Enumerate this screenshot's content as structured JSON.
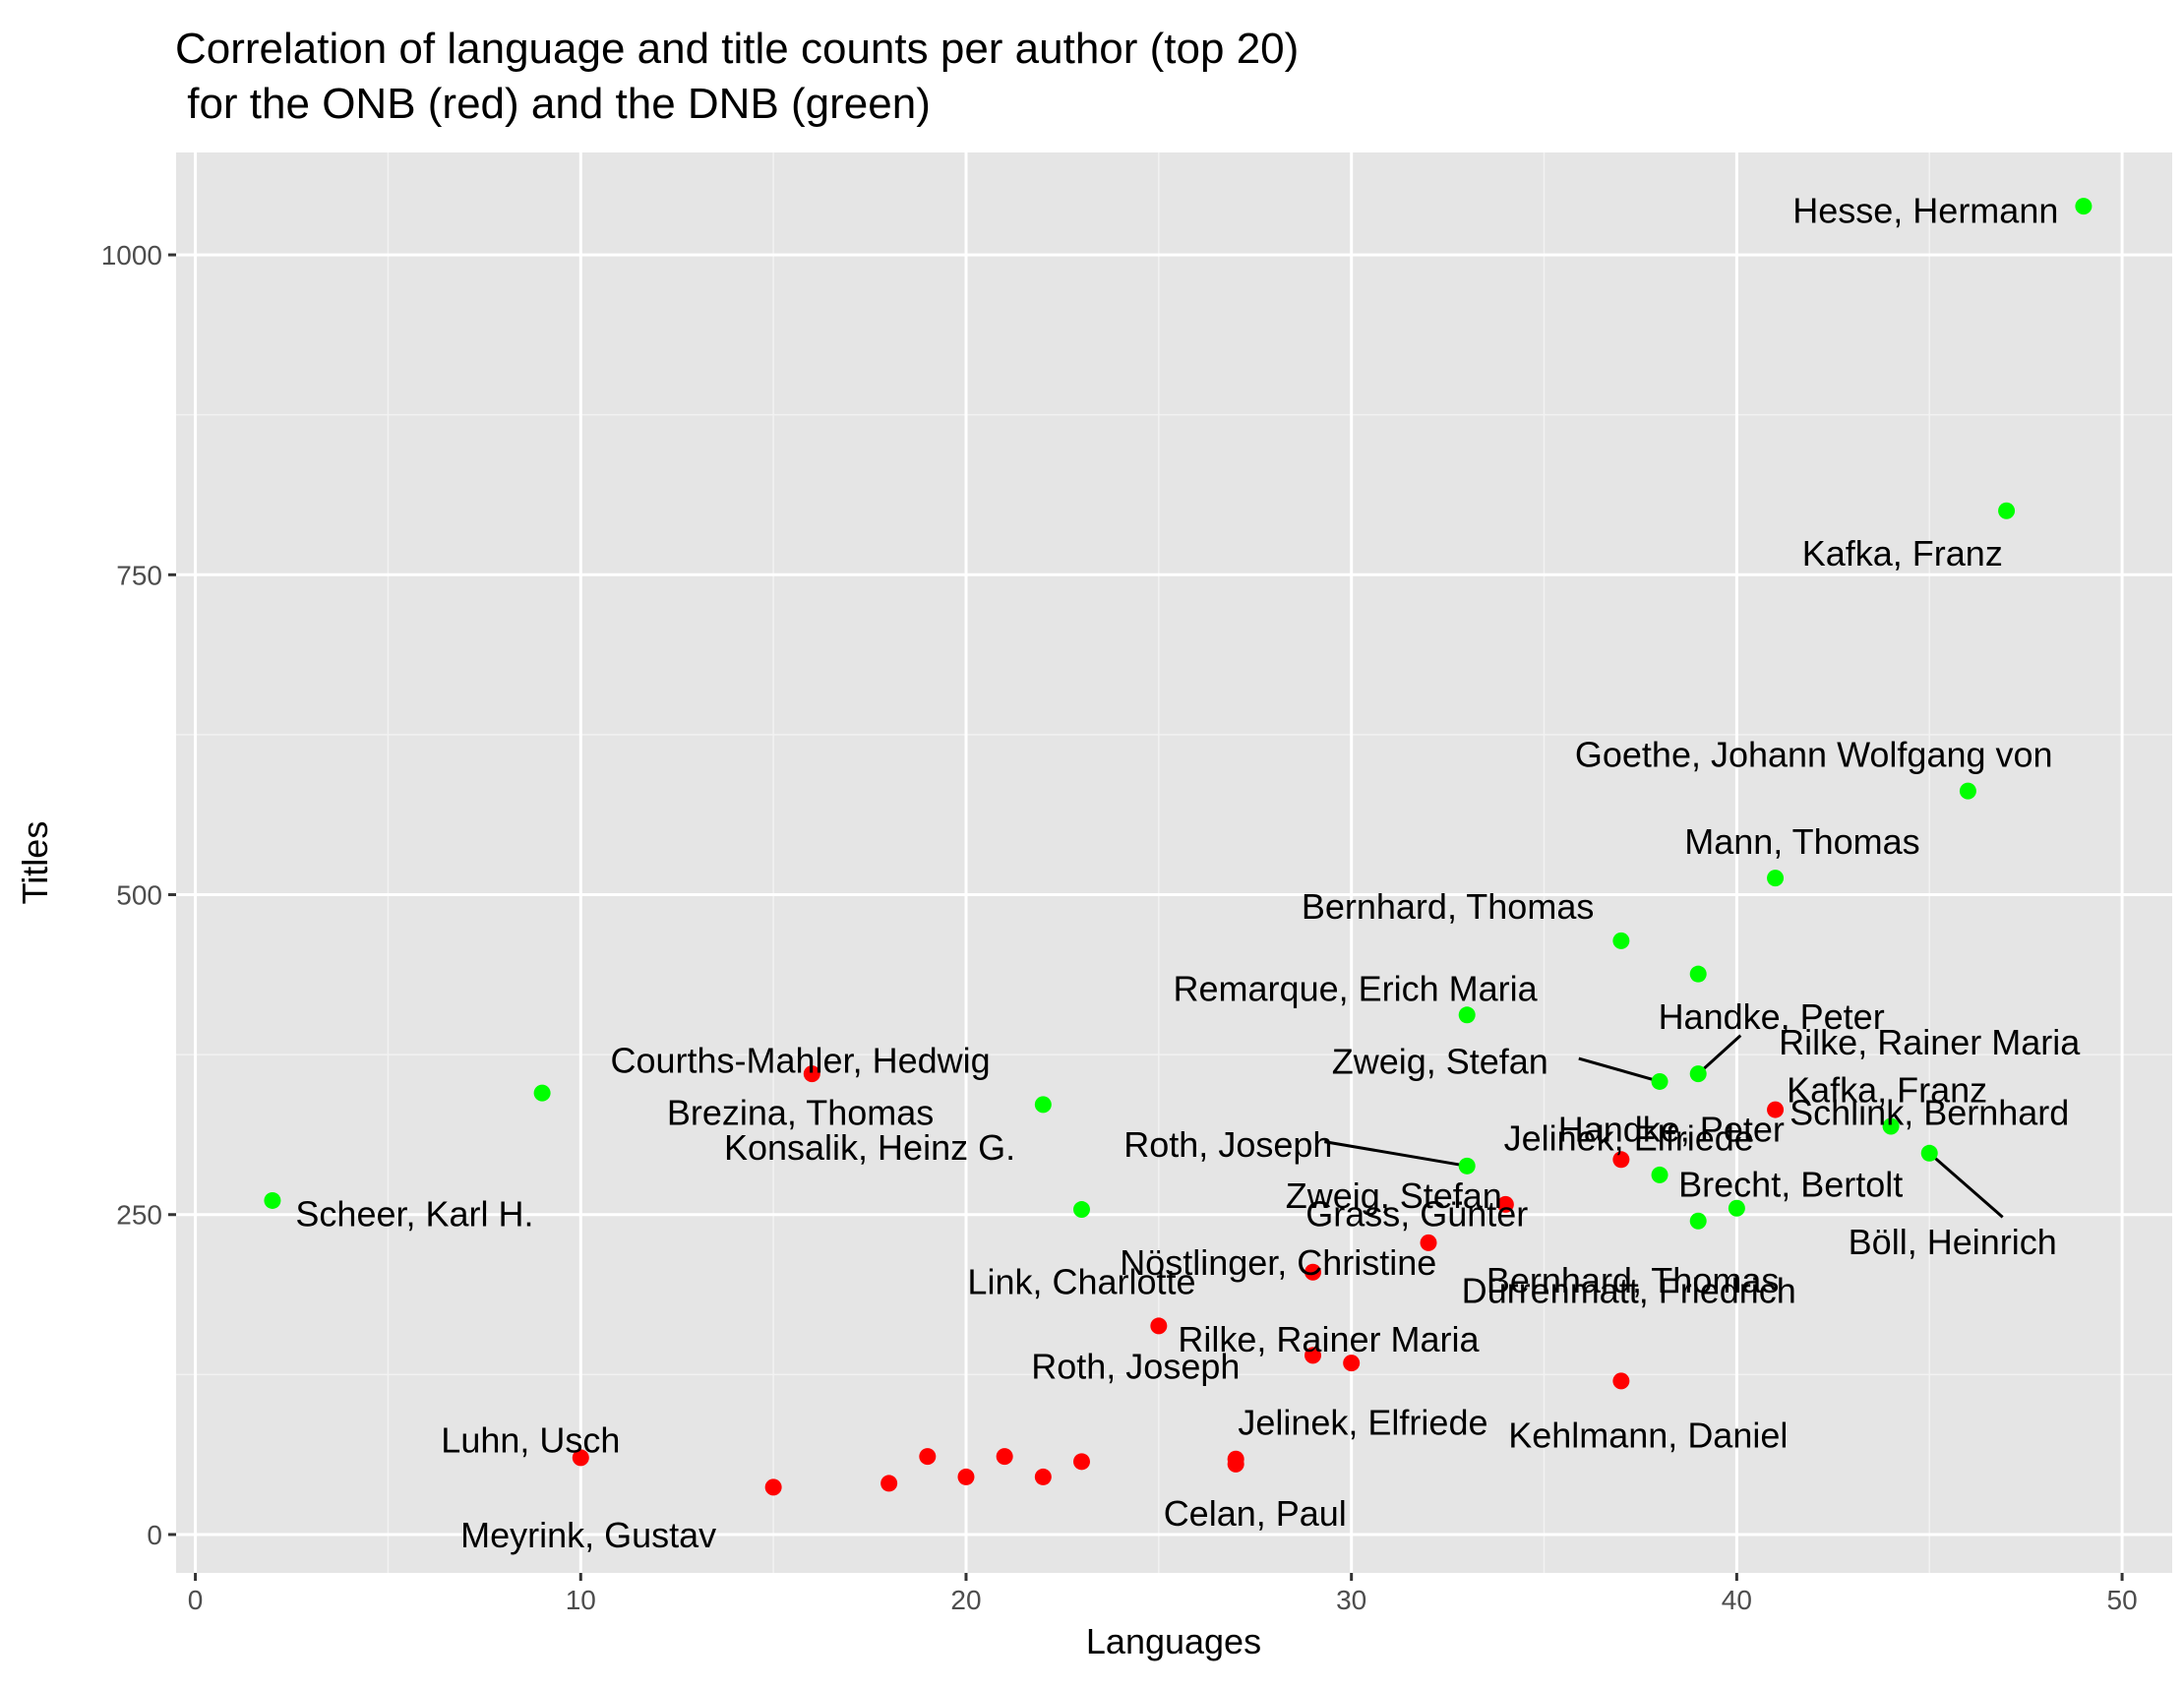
{
  "chart_data": {
    "type": "scatter",
    "title": [
      "Correlation of language and title counts per author (top 20)",
      " for the ONB (red) and the DNB (green)"
    ],
    "xlabel": "Languages",
    "ylabel": "Titles",
    "xlim": [
      -0.5,
      51.3
    ],
    "ylim": [
      -30,
      1080
    ],
    "x_ticks": [
      0,
      10,
      20,
      30,
      40,
      50
    ],
    "y_ticks": [
      0,
      250,
      500,
      750,
      1000
    ],
    "grid": true,
    "background": "#e5e5e5",
    "colors": {
      "ONB": "#ff0000",
      "DNB": "#00ff00"
    },
    "series": [
      {
        "name": "ONB",
        "color": "#ff0000",
        "points": [
          {
            "x": 41,
            "y": 332
          },
          {
            "x": 16,
            "y": 360
          },
          {
            "x": 37,
            "y": 293
          },
          {
            "x": 34,
            "y": 258
          },
          {
            "x": 32,
            "y": 228
          },
          {
            "x": 29,
            "y": 205
          },
          {
            "x": 25,
            "y": 163
          },
          {
            "x": 29,
            "y": 140
          },
          {
            "x": 30,
            "y": 134
          },
          {
            "x": 37,
            "y": 120
          },
          {
            "x": 10,
            "y": 60
          },
          {
            "x": 15,
            "y": 37
          },
          {
            "x": 18,
            "y": 40
          },
          {
            "x": 19,
            "y": 61
          },
          {
            "x": 20,
            "y": 45
          },
          {
            "x": 21,
            "y": 61
          },
          {
            "x": 22,
            "y": 45
          },
          {
            "x": 23,
            "y": 57
          },
          {
            "x": 27,
            "y": 59
          },
          {
            "x": 27,
            "y": 55
          }
        ]
      },
      {
        "name": "DNB",
        "color": "#00ff00",
        "points": [
          {
            "x": 49,
            "y": 1038
          },
          {
            "x": 47,
            "y": 800
          },
          {
            "x": 46,
            "y": 581
          },
          {
            "x": 41,
            "y": 513
          },
          {
            "x": 37,
            "y": 464
          },
          {
            "x": 39,
            "y": 438
          },
          {
            "x": 33,
            "y": 406
          },
          {
            "x": 39,
            "y": 360
          },
          {
            "x": 38,
            "y": 354
          },
          {
            "x": 44,
            "y": 319
          },
          {
            "x": 45,
            "y": 298
          },
          {
            "x": 9,
            "y": 345
          },
          {
            "x": 22,
            "y": 336
          },
          {
            "x": 33,
            "y": 288
          },
          {
            "x": 38,
            "y": 281
          },
          {
            "x": 2,
            "y": 261
          },
          {
            "x": 23,
            "y": 254
          },
          {
            "x": 40,
            "y": 255
          },
          {
            "x": 39,
            "y": 245
          }
        ]
      }
    ],
    "annotations": [
      {
        "text": "Hesse, Hermann",
        "x": 49,
        "y": 1038,
        "tx": 44.9,
        "ty": 1035,
        "anchor": "middle"
      },
      {
        "text": "Kafka, Franz",
        "x": 47,
        "y": 800,
        "tx": 44.3,
        "ty": 767,
        "anchor": "middle"
      },
      {
        "text": "Goethe, Johann Wolfgang von",
        "x": 46,
        "y": 581,
        "tx": 42.0,
        "ty": 610,
        "anchor": "middle"
      },
      {
        "text": "Mann, Thomas",
        "x": 41,
        "y": 513,
        "tx": 41.7,
        "ty": 542,
        "anchor": "middle"
      },
      {
        "text": "Bernhard, Thomas",
        "x": 37,
        "y": 464,
        "tx": 32.5,
        "ty": 491,
        "anchor": "middle"
      },
      {
        "text": "Remarque, Erich Maria",
        "x": 33,
        "y": 406,
        "tx": 30.1,
        "ty": 427,
        "anchor": "middle"
      },
      {
        "text": "Handke, Peter",
        "x": 39,
        "y": 438,
        "tx": 40.9,
        "ty": 405,
        "anchor": "middle"
      },
      {
        "text": "Rilke, Rainer Maria",
        "x": 39,
        "y": 360,
        "tx": 45.0,
        "ty": 385,
        "anchor": "middle",
        "lx": 40.1,
        "ly": 390
      },
      {
        "text": "Zweig, Stefan",
        "x": 38,
        "y": 354,
        "tx": 32.3,
        "ty": 370,
        "anchor": "middle",
        "lx": 35.9,
        "ly": 372
      },
      {
        "text": "Kafka, Franz",
        "x": 41,
        "y": 332,
        "tx": 43.9,
        "ty": 348,
        "anchor": "middle"
      },
      {
        "text": "Schlink, Bernhard",
        "x": 44,
        "y": 319,
        "tx": 45.0,
        "ty": 330,
        "anchor": "middle"
      },
      {
        "text": "Handke, Peter",
        "x": 37,
        "y": 293,
        "tx": 38.3,
        "ty": 317,
        "anchor": "middle"
      },
      {
        "text": "Jelinek, Elfriede",
        "x": 37,
        "y": 293,
        "tx": 37.2,
        "ty": 310,
        "anchor": "middle"
      },
      {
        "text": "Courths-Mahler, Hedwig",
        "x": 9,
        "y": 345,
        "tx": 15.7,
        "ty": 371,
        "anchor": "middle"
      },
      {
        "text": "Brezina, Thomas",
        "x": 22,
        "y": 336,
        "tx": 15.7,
        "ty": 330,
        "anchor": "middle"
      },
      {
        "text": "Konsalik, Heinz G.",
        "x": 22,
        "y": 336,
        "tx": 17.5,
        "ty": 303,
        "anchor": "middle"
      },
      {
        "text": "Roth, Joseph",
        "x": 33,
        "y": 288,
        "tx": 26.8,
        "ty": 305,
        "anchor": "middle",
        "lx": 29.3,
        "ly": 307
      },
      {
        "text": "Zweig, Stefan",
        "x": 33,
        "y": 288,
        "tx": 31.1,
        "ty": 265,
        "anchor": "middle"
      },
      {
        "text": "Brecht, Bertolt",
        "x": 38,
        "y": 281,
        "tx": 41.4,
        "ty": 274,
        "anchor": "middle"
      },
      {
        "text": "Böll, Heinrich",
        "x": 45,
        "y": 298,
        "tx": 45.6,
        "ty": 229,
        "anchor": "middle",
        "lx": 46.9,
        "ly": 248
      },
      {
        "text": "Grass, Günter",
        "x": 34,
        "y": 258,
        "tx": 31.7,
        "ty": 251,
        "anchor": "middle"
      },
      {
        "text": "Scheer, Karl H.",
        "x": 2,
        "y": 261,
        "tx": 2.6,
        "ty": 251,
        "anchor": "start"
      },
      {
        "text": "Nöstlinger, Christine",
        "x": 32,
        "y": 228,
        "tx": 28.1,
        "ty": 213,
        "anchor": "middle"
      },
      {
        "text": "Link, Charlotte",
        "x": 23,
        "y": 254,
        "tx": 23.0,
        "ty": 198,
        "anchor": "middle"
      },
      {
        "text": "Bernhard, Thomas",
        "x": 34,
        "y": 258,
        "tx": 37.3,
        "ty": 199,
        "anchor": "middle"
      },
      {
        "text": "Dürrenmatt, Friedrich",
        "x": 34,
        "y": 258,
        "tx": 37.2,
        "ty": 191,
        "anchor": "middle"
      },
      {
        "text": "Rilke, Rainer Maria",
        "x": 25,
        "y": 163,
        "tx": 25.5,
        "ty": 153,
        "anchor": "start"
      },
      {
        "text": "Roth, Joseph",
        "x": 29,
        "y": 140,
        "tx": 24.4,
        "ty": 132,
        "anchor": "middle"
      },
      {
        "text": "Jelinek, Elfriede",
        "x": 30,
        "y": 134,
        "tx": 30.3,
        "ty": 88,
        "anchor": "middle"
      },
      {
        "text": "Kehlmann, Daniel",
        "x": 37,
        "y": 120,
        "tx": 37.7,
        "ty": 78,
        "anchor": "middle"
      },
      {
        "text": "Luhn, Usch",
        "x": 10,
        "y": 60,
        "tx": 8.7,
        "ty": 74,
        "anchor": "middle"
      },
      {
        "text": "Celan, Paul",
        "x": 27,
        "y": 55,
        "tx": 27.5,
        "ty": 17,
        "anchor": "middle"
      },
      {
        "text": "Meyrink, Gustav",
        "x": 15,
        "y": 37,
        "tx": 10.2,
        "ty": 0,
        "anchor": "middle"
      }
    ]
  }
}
